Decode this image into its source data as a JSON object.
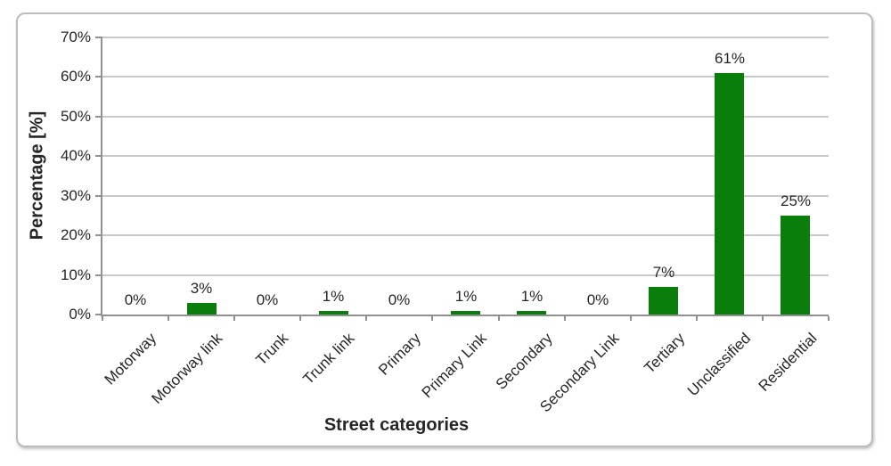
{
  "figure": {
    "background": "#ffffff",
    "border_color": "#bcbcbc"
  },
  "chart_data": {
    "type": "bar",
    "title": "",
    "xlabel": "Street categories",
    "ylabel": "Percentage [%]",
    "categories": [
      "Motorway",
      "Motorway link",
      "Trunk",
      "Trunk link",
      "Primary",
      "Primary Link",
      "Secondary",
      "Secondary Link",
      "Tertiary",
      "Unclassified",
      "Residential"
    ],
    "values": [
      0,
      3,
      0,
      1,
      0,
      1,
      1,
      0,
      7,
      61,
      25
    ],
    "bar_labels": [
      "0%",
      "3%",
      "0%",
      "1%",
      "0%",
      "1%",
      "1%",
      "0%",
      "7%",
      "61%",
      "25%"
    ],
    "ylim": [
      0,
      70
    ],
    "yticks": [
      0,
      10,
      20,
      30,
      40,
      50,
      60,
      70
    ],
    "ytick_labels": [
      "0%",
      "10%",
      "20%",
      "30%",
      "40%",
      "50%",
      "60%",
      "70%"
    ],
    "grid": true,
    "legend": null,
    "bar_color": "#0a7e0a",
    "gridline_color": "#c9c9c9",
    "axis_color": "#919191",
    "text_color": "#262626"
  }
}
